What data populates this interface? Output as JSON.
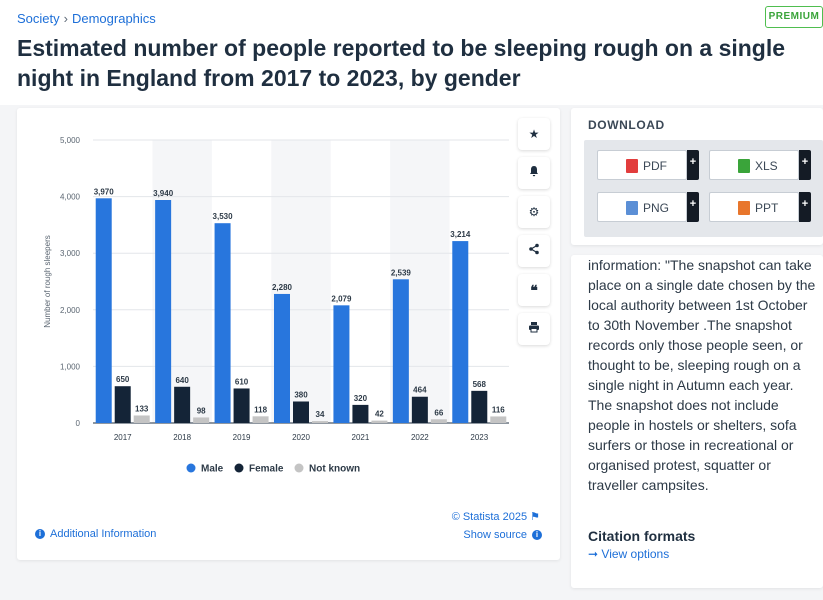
{
  "breadcrumb": {
    "society": "Society",
    "separator": "›",
    "demographics": "Demographics"
  },
  "badge": "PREMIUM",
  "title": "Estimated number of people reported to be sleeping rough on a single night in England from 2017 to 2023, by gender",
  "tools": [
    "star-icon",
    "bell-icon",
    "gear-icon",
    "share-icon",
    "quote-icon",
    "print-icon"
  ],
  "chart_data": {
    "type": "bar",
    "categories": [
      "2017",
      "2018",
      "2019",
      "2020",
      "2021",
      "2022",
      "2023"
    ],
    "series": [
      {
        "name": "Male",
        "color": "#2876dd",
        "values": [
          3970,
          3940,
          3530,
          2280,
          2079,
          2539,
          3214
        ],
        "labels": [
          "3,970",
          "3,940",
          "3,530",
          "2,280",
          "2,079",
          "2,539",
          "3,214"
        ]
      },
      {
        "name": "Female",
        "color": "#142437",
        "values": [
          650,
          640,
          610,
          380,
          320,
          464,
          568
        ],
        "labels": [
          "650",
          "640",
          "610",
          "380",
          "320",
          "464",
          "568"
        ]
      },
      {
        "name": "Not known",
        "color": "#c4c4c4",
        "values": [
          133,
          98,
          118,
          34,
          42,
          66,
          116
        ],
        "labels": [
          "133",
          "98",
          "118",
          "34",
          "42",
          "66",
          "116"
        ]
      }
    ],
    "ylabel": "Number of rough sleepers",
    "xlabel": "",
    "ylim": [
      0,
      5000
    ],
    "yticks": [
      0,
      1000,
      2000,
      3000,
      4000,
      5000
    ],
    "ytick_labels": [
      "0",
      "1,000",
      "2,000",
      "3,000",
      "4,000",
      "5,000"
    ],
    "grid": true,
    "legend_position": "bottom-center"
  },
  "footer": {
    "credit": "© Statista 2025",
    "additional_info": "Additional Information",
    "show_source": "Show source"
  },
  "download": {
    "title": "DOWNLOAD",
    "pdf": "PDF",
    "xls": "XLS",
    "png": "PNG",
    "ppt": "PPT",
    "plus": "+"
  },
  "info": {
    "body": "information: \"The snapshot can take place on a single date chosen by the local authority between 1st October to 30th November .The snapshot records only those people seen, or thought to be, sleeping rough on a single night in Autumn each year. The snapshot does not include people in hostels or shelters, sofa surfers or those in recreational or organised protest, squatter or traveller campsites.",
    "citation_title": "Citation formats",
    "citation_link": "View options"
  }
}
